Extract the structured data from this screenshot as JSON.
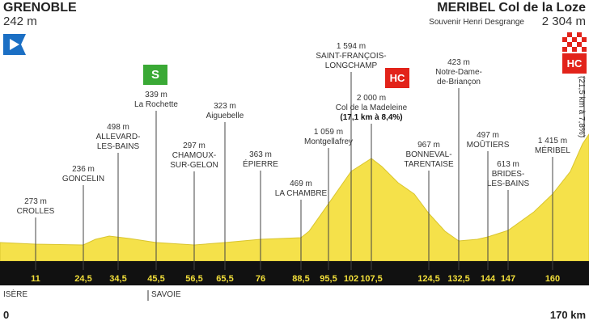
{
  "header": {
    "start": "GRENOBLE",
    "start_altitude": "242 m",
    "finish": "MERIBEL Col de la Loze",
    "finish_altitude": "2 304 m",
    "finish_note": "Souvenir Henri Desgrange"
  },
  "waypoints": [
    {
      "altitude": "273 m",
      "name": [
        "CROLLES"
      ],
      "km": "11"
    },
    {
      "altitude": "236 m",
      "name": [
        "GONCELIN"
      ],
      "km": "24,5"
    },
    {
      "altitude": "498 m",
      "name": [
        "ALLEVARD-",
        "LES-BAINS"
      ],
      "km": "34,5"
    },
    {
      "altitude": "339 m",
      "name": [
        "La Rochette"
      ],
      "km": "45,5"
    },
    {
      "altitude": "297 m",
      "name": [
        "CHAMOUX-",
        "SUR-GELON"
      ],
      "km": "56,5"
    },
    {
      "altitude": "323 m",
      "name": [
        "Aiguebelle"
      ],
      "km": "65,5"
    },
    {
      "altitude": "363 m",
      "name": [
        "ÉPIERRE"
      ],
      "km": "76"
    },
    {
      "altitude": "469 m",
      "name": [
        "LA CHAMBRE"
      ],
      "km": "88,5"
    },
    {
      "altitude": "1 059 m",
      "name": [
        "Montgellafrey"
      ],
      "km": "95,5"
    },
    {
      "altitude": "1 594 m",
      "name": [
        "SAINT-FRANÇOIS-",
        "LONGCHAMP"
      ],
      "km": "102"
    },
    {
      "altitude": "2 000 m",
      "name": [
        "Col de la Madeleine"
      ],
      "note": "(17,1 km à 8,4%)",
      "km": "107,5"
    },
    {
      "altitude": "967 m",
      "name": [
        "BONNEVAL-",
        "TARENTAISE"
      ],
      "km": "124,5"
    },
    {
      "altitude": "423 m",
      "name": [
        "Notre-Dame-",
        "de-Briançon"
      ],
      "km": "132,5"
    },
    {
      "altitude": "497 m",
      "name": [
        "MOÛTIERS"
      ],
      "km": "144"
    },
    {
      "altitude": "613 m",
      "name": [
        "BRIDES-",
        "LES-BAINS"
      ],
      "km": "147"
    },
    {
      "altitude": "1 415 m",
      "name": [
        "MÉRIBEL"
      ],
      "km": "160"
    }
  ],
  "final_climb": "(21,5 km à 7,8%)",
  "icons": {
    "sprint": "S",
    "hc": "HC",
    "hc_finish": "HC"
  },
  "regions": [
    "ISÈRE",
    "SAVOIE"
  ],
  "distance": {
    "start": "0",
    "end": "170 km"
  }
}
